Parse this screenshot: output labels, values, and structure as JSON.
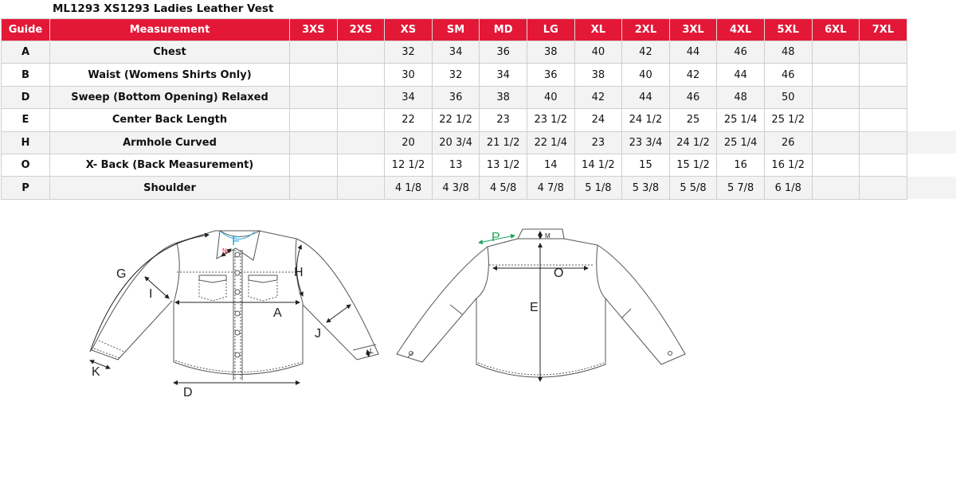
{
  "title": "ML1293 XS1293 Ladies Leather Vest",
  "colors": {
    "header_bg": "#e31837",
    "header_text": "#ffffff",
    "alt_row": "#f3f3f3",
    "label_f": "#29a8e0",
    "label_p": "#1aa35a",
    "label_n": "#e31837"
  },
  "table": {
    "headers": [
      "Guide",
      "Measurement",
      "3XS",
      "2XS",
      "XS",
      "SM",
      "MD",
      "LG",
      "XL",
      "2XL",
      "3XL",
      "4XL",
      "5XL",
      "6XL",
      "7XL"
    ],
    "rows": [
      {
        "guide": "A",
        "measurement": "Chest",
        "values": [
          "",
          "",
          "32",
          "34",
          "36",
          "38",
          "40",
          "42",
          "44",
          "46",
          "48",
          "",
          ""
        ]
      },
      {
        "guide": "B",
        "measurement": "Waist (Womens Shirts Only)",
        "values": [
          "",
          "",
          "30",
          "32",
          "34",
          "36",
          "38",
          "40",
          "42",
          "44",
          "46",
          "",
          ""
        ]
      },
      {
        "guide": "D",
        "measurement": "Sweep (Bottom Opening)  Relaxed",
        "values": [
          "",
          "",
          "34",
          "36",
          "38",
          "40",
          "42",
          "44",
          "46",
          "48",
          "50",
          "",
          ""
        ]
      },
      {
        "guide": "E",
        "measurement": "Center Back Length",
        "values": [
          "",
          "",
          "22",
          "22 1/2",
          "23",
          "23 1/2",
          "24",
          "24 1/2",
          "25",
          "25 1/4",
          "25 1/2",
          "",
          ""
        ]
      },
      {
        "guide": "H",
        "measurement": "Armhole Curved",
        "values": [
          "",
          "",
          "20",
          "20 3/4",
          "21 1/2",
          "22 1/4",
          "23",
          "23 3/4",
          "24 1/2",
          "25 1/4",
          "26",
          "",
          ""
        ]
      },
      {
        "guide": "O",
        "measurement": "X- Back (Back Measurement)",
        "values": [
          "",
          "",
          "12 1/2",
          "13",
          "13 1/2",
          "14",
          "14 1/2",
          "15",
          "15 1/2",
          "16",
          "16 1/2",
          "",
          ""
        ]
      },
      {
        "guide": "P",
        "measurement": "Shoulder",
        "values": [
          "",
          "",
          "4 1/8",
          "4 3/8",
          "4 5/8",
          "4 7/8",
          "5 1/8",
          "5 3/8",
          "5 5/8",
          "5 7/8",
          "6 1/8",
          "",
          ""
        ]
      }
    ]
  },
  "diagram": {
    "front_labels": {
      "G": "G",
      "I": "I",
      "H": "H",
      "A": "A",
      "J": "J",
      "K": "K",
      "D": "D",
      "F": "F",
      "L": "L",
      "N": "N"
    },
    "back_labels": {
      "P": "P",
      "M": "M",
      "O": "O",
      "E": "E"
    }
  }
}
